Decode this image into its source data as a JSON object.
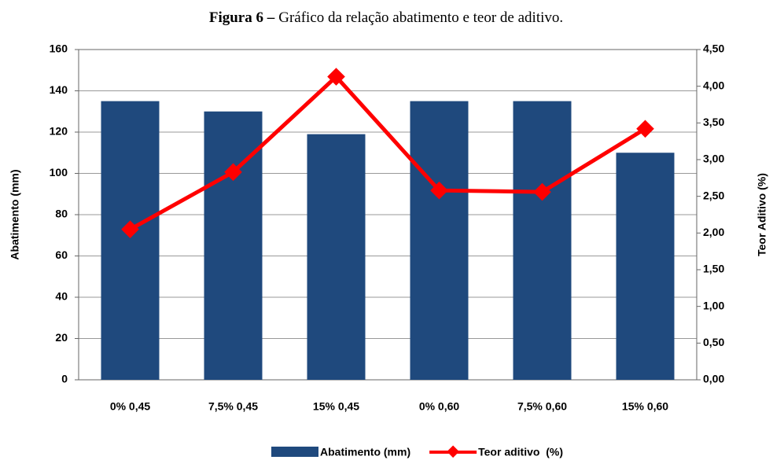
{
  "chart_data": {
    "type": "bar_line",
    "figure_label": "Figura 6 –",
    "title": "Gráfico da relação abatimento e teor de aditivo.",
    "categories": [
      "0% 0,45",
      "7,5% 0,45",
      "15% 0,45",
      "0% 0,60",
      "7,5% 0,60",
      "15% 0,60"
    ],
    "series": [
      {
        "name": "Abatimento (mm)",
        "type": "bar",
        "color": "#1f497d",
        "values": [
          135,
          130,
          119,
          135,
          135,
          110
        ]
      },
      {
        "name": "Teor aditivo  (%)",
        "type": "line",
        "axis": "y2",
        "color": "#ff0000",
        "values": [
          2.05,
          2.83,
          4.13,
          2.58,
          2.56,
          3.42
        ]
      }
    ],
    "ylabel": "Abatimento (mm)",
    "y2label": "Teor Aditivo (%)",
    "ylim": [
      0,
      160
    ],
    "yticks": [
      0,
      20,
      40,
      60,
      80,
      100,
      120,
      140,
      160
    ],
    "y2lim": [
      0,
      4.5
    ],
    "y2ticks": [
      {
        "value": 0,
        "label": "0,00"
      },
      {
        "value": 0.5,
        "label": "0,50"
      },
      {
        "value": 1,
        "label": "1,00"
      },
      {
        "value": 1.5,
        "label": "1,50"
      },
      {
        "value": 2,
        "label": "2,00"
      },
      {
        "value": 2.5,
        "label": "2,50"
      },
      {
        "value": 3,
        "label": "3,00"
      },
      {
        "value": 3.5,
        "label": "3,50"
      },
      {
        "value": 4,
        "label": "4,00"
      },
      {
        "value": 4.5,
        "label": "4,50"
      }
    ],
    "grid": true,
    "legend": "bottom"
  }
}
